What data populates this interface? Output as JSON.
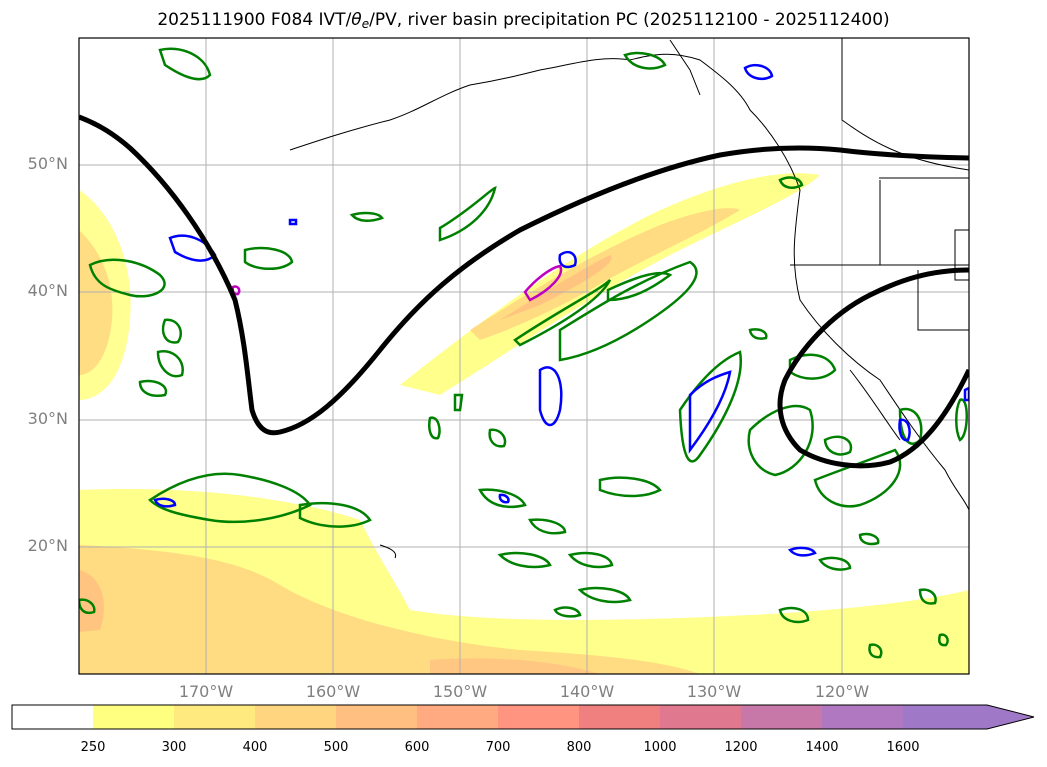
{
  "title": {
    "prefix": "2025111900 F084 IVT/",
    "theta": "θ",
    "theta_sub": "e",
    "suffix": "/PV, river basin precipitation PC (2025112100 - 2025112400)"
  },
  "map": {
    "lat_labels": [
      "50°N",
      "40°N",
      "30°N",
      "20°N"
    ],
    "lon_labels": [
      "170°W",
      "160°W",
      "150°W",
      "140°W",
      "130°W",
      "120°W"
    ]
  },
  "colorbar": {
    "labels": [
      "250",
      "300",
      "400",
      "500",
      "600",
      "700",
      "800",
      "1000",
      "1200",
      "1400",
      "1600"
    ],
    "colors": [
      "#ffff80",
      "#ffea80",
      "#ffd580",
      "#ffbf80",
      "#ffaa80",
      "#ff9580",
      "#f08080",
      "#e07890",
      "#c878a8",
      "#b078c0",
      "#a078c8"
    ],
    "extend": "max"
  },
  "colors": {
    "pv_contour": "#000000",
    "theta_e_green": "#008000",
    "theta_e_blue": "#0000ff",
    "magenta": "#c000c0",
    "grid": "#b0b0b0",
    "coast": "#000000"
  }
}
